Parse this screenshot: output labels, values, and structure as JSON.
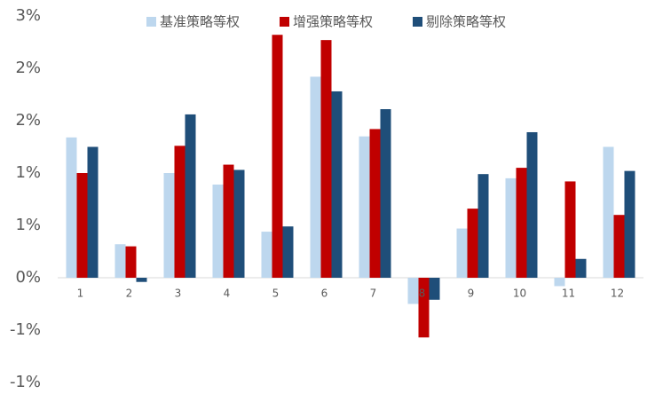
{
  "chart_data": {
    "type": "bar",
    "categories": [
      "1",
      "2",
      "3",
      "4",
      "5",
      "6",
      "7",
      "8",
      "9",
      "10",
      "11",
      "12"
    ],
    "series": [
      {
        "name": "基准策略等权",
        "color": "#bdd7ee",
        "values": [
          1.34,
          0.32,
          1.0,
          0.89,
          0.44,
          1.92,
          1.35,
          -0.25,
          0.47,
          0.95,
          -0.08,
          1.25
        ]
      },
      {
        "name": "增强策略等权",
        "color": "#c00000",
        "values": [
          1.0,
          0.3,
          1.26,
          1.08,
          2.32,
          2.27,
          1.42,
          -0.57,
          0.66,
          1.05,
          0.92,
          0.6
        ]
      },
      {
        "name": "剔除策略等权",
        "color": "#1f4e79",
        "values": [
          1.25,
          -0.04,
          1.56,
          1.03,
          0.49,
          1.78,
          1.61,
          -0.21,
          0.99,
          1.39,
          0.18,
          1.02
        ]
      }
    ],
    "ylim": [
      -1.0,
      2.5
    ],
    "yticks": [
      {
        "value": -1.0,
        "label": "-1%"
      },
      {
        "value": -0.5,
        "label": "-1%"
      },
      {
        "value": 0,
        "label": "0%"
      },
      {
        "value": 0.5,
        "label": "1%"
      },
      {
        "value": 1.0,
        "label": "1%"
      },
      {
        "value": 1.5,
        "label": "2%"
      },
      {
        "value": 2.0,
        "label": "2%"
      },
      {
        "value": 2.5,
        "label": "3%"
      }
    ],
    "legend": "top",
    "grid": false
  }
}
